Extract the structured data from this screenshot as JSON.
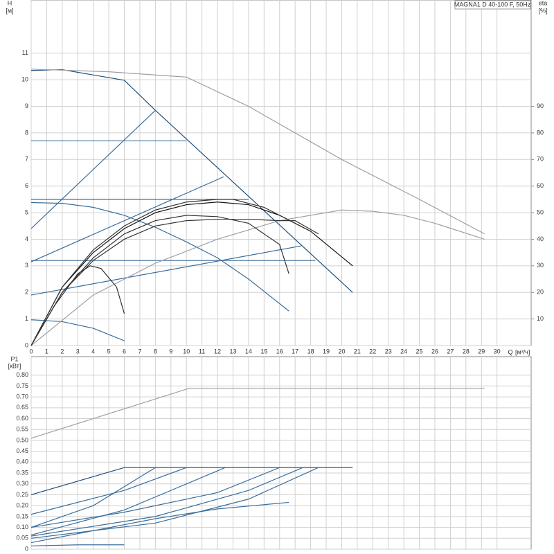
{
  "legend_text": "MAGNA1 D 40-100 F, 50Hz",
  "chart_data": [
    {
      "type": "line",
      "y_label": "H",
      "y_unit": "[м]",
      "y2_label": "eta",
      "y2_unit": "[%]",
      "x_label": "Q",
      "x_unit": "[м³/ч]",
      "xlim": [
        0,
        32.2
      ],
      "ylim": [
        0,
        13
      ],
      "y2lim": [
        0,
        130
      ],
      "grid": true,
      "xticks": [
        0,
        1,
        2,
        3,
        4,
        5,
        6,
        7,
        8,
        9,
        10,
        11,
        12,
        13,
        14,
        15,
        16,
        17,
        18,
        19,
        20,
        21,
        22,
        23,
        24,
        25,
        26,
        27,
        28,
        29,
        30
      ],
      "yticks": [
        0,
        1,
        2,
        3,
        4,
        5,
        6,
        7,
        8,
        9,
        10,
        11
      ],
      "y2ticks": [
        10,
        20,
        30,
        40,
        50,
        60,
        70,
        80,
        90
      ],
      "series": [
        {
          "color": "#1f4e79",
          "x": [
            0,
            2,
            6,
            8,
            20.7
          ],
          "values": [
            10.35,
            10.38,
            9.98,
            8.85,
            2.0
          ]
        },
        {
          "color": "#3a6d9a",
          "x": [
            0,
            8
          ],
          "values": [
            4.4,
            8.85
          ]
        },
        {
          "color": "#3a6d9a",
          "x": [
            0,
            12.4
          ],
          "values": [
            3.15,
            6.35
          ]
        },
        {
          "color": "#3a6d9a",
          "x": [
            0,
            17.4
          ],
          "values": [
            1.9,
            3.75
          ]
        },
        {
          "color": "#3a6d9a",
          "x": [
            0,
            10
          ],
          "values": [
            7.7,
            7.7
          ]
        },
        {
          "color": "#3a6d9a",
          "x": [
            0,
            14
          ],
          "values": [
            5.5,
            5.5
          ]
        },
        {
          "color": "#3a6d9a",
          "x": [
            0,
            18.3
          ],
          "values": [
            3.2,
            3.2
          ]
        },
        {
          "color": "#3a6d9a",
          "x": [
            0,
            2,
            4,
            6,
            8,
            10,
            12,
            14,
            16.6
          ],
          "values": [
            5.38,
            5.35,
            5.2,
            4.9,
            4.45,
            3.9,
            3.3,
            2.5,
            1.3
          ]
        },
        {
          "color": "#3a6d9a",
          "x": [
            0,
            2,
            4,
            6
          ],
          "values": [
            0.97,
            0.9,
            0.65,
            0.18
          ]
        },
        {
          "color": "#9aa0a8",
          "x": [
            0,
            5,
            10,
            14,
            20,
            25,
            29.2
          ],
          "values": [
            10.4,
            10.3,
            10.1,
            9.0,
            7.0,
            5.5,
            4.2
          ]
        },
        {
          "color": "#9aa0a8",
          "axis": "y2",
          "x": [
            0,
            4,
            8,
            12,
            16,
            20,
            22,
            24,
            26,
            29.2
          ],
          "values": [
            0,
            19,
            31,
            40,
            47,
            51,
            50.5,
            49,
            46,
            40
          ]
        },
        {
          "color": "#111111",
          "axis": "y2",
          "x": [
            0,
            2,
            4,
            6,
            8,
            10,
            12,
            14,
            16,
            18,
            20.7
          ],
          "values": [
            0,
            22,
            35,
            44,
            50,
            53,
            54,
            53,
            49,
            43,
            30
          ]
        },
        {
          "color": "#333333",
          "axis": "y2",
          "x": [
            0,
            2,
            4,
            6,
            8,
            10,
            12,
            14,
            16,
            16.6
          ],
          "values": [
            0,
            20,
            33,
            42,
            47,
            49,
            48.5,
            46,
            38,
            27
          ]
        },
        {
          "color": "#333333",
          "axis": "y2",
          "x": [
            0,
            1.5,
            3,
            3.8,
            4.5,
            5.5,
            6
          ],
          "values": [
            0,
            15,
            27,
            30,
            29,
            22,
            12
          ]
        },
        {
          "color": "#333333",
          "axis": "y2",
          "x": [
            0,
            2,
            4,
            6,
            8,
            10,
            12,
            13,
            15,
            17
          ],
          "values": [
            0,
            22,
            36,
            45,
            51,
            54,
            55,
            55,
            52,
            46
          ]
        },
        {
          "color": "#333333",
          "axis": "y2",
          "x": [
            0,
            2,
            4,
            6,
            8,
            10,
            12,
            14,
            16,
            17,
            18.5
          ],
          "values": [
            0,
            20,
            32,
            40,
            45,
            47,
            47.5,
            47.5,
            47,
            47,
            42
          ]
        }
      ]
    },
    {
      "type": "line",
      "y_label": "P1",
      "y_unit": "[кВт]",
      "xlim": [
        0,
        32.2
      ],
      "ylim": [
        0,
        0.885
      ],
      "grid": true,
      "yticks": [
        0,
        0.05,
        {
          "value": 0.1,
          "label": "0.10"
        },
        0.15,
        {
          "value": 0.2,
          "label": "0.20"
        },
        0.25,
        {
          "value": 0.3,
          "label": "0.30"
        },
        0.35,
        {
          "value": 0.4,
          "label": "0.40"
        },
        0.45,
        {
          "value": 0.5,
          "label": "0.50"
        },
        0.55,
        {
          "value": 0.6,
          "label": "0.60"
        },
        0.65,
        {
          "value": 0.7,
          "label": "0.70"
        },
        0.75,
        {
          "value": 0.8,
          "label": "0.80"
        }
      ],
      "series": [
        {
          "color": "#9aa0a8",
          "x": [
            0,
            10.2,
            29.2
          ],
          "values": [
            0.51,
            0.74,
            0.74
          ]
        },
        {
          "color": "#1f4e79",
          "x": [
            0,
            6,
            20.7
          ],
          "values": [
            0.25,
            0.375,
            0.375
          ]
        },
        {
          "color": "#3a6d9a",
          "x": [
            0,
            6,
            10
          ],
          "values": [
            0.16,
            0.27,
            0.375
          ]
        },
        {
          "color": "#3a6d9a",
          "x": [
            0,
            4,
            8
          ],
          "values": [
            0.1,
            0.2,
            0.375
          ]
        },
        {
          "color": "#3a6d9a",
          "x": [
            0,
            6,
            10,
            12.5
          ],
          "values": [
            0.065,
            0.18,
            0.3,
            0.375
          ]
        },
        {
          "color": "#3a6d9a",
          "x": [
            0,
            6,
            12,
            16
          ],
          "values": [
            0.1,
            0.17,
            0.26,
            0.375
          ]
        },
        {
          "color": "#3a6d9a",
          "x": [
            0,
            8,
            14,
            17.5
          ],
          "values": [
            0.06,
            0.15,
            0.27,
            0.375
          ]
        },
        {
          "color": "#3a6d9a",
          "x": [
            0,
            8,
            14,
            18.5
          ],
          "values": [
            0.05,
            0.12,
            0.23,
            0.375
          ]
        },
        {
          "color": "#3a6d9a",
          "x": [
            0,
            8,
            12,
            16.6
          ],
          "values": [
            0.03,
            0.14,
            0.185,
            0.215
          ]
        },
        {
          "color": "#3a6d9a",
          "x": [
            0,
            3,
            6
          ],
          "values": [
            0.015,
            0.02,
            0.02
          ]
        }
      ]
    }
  ]
}
